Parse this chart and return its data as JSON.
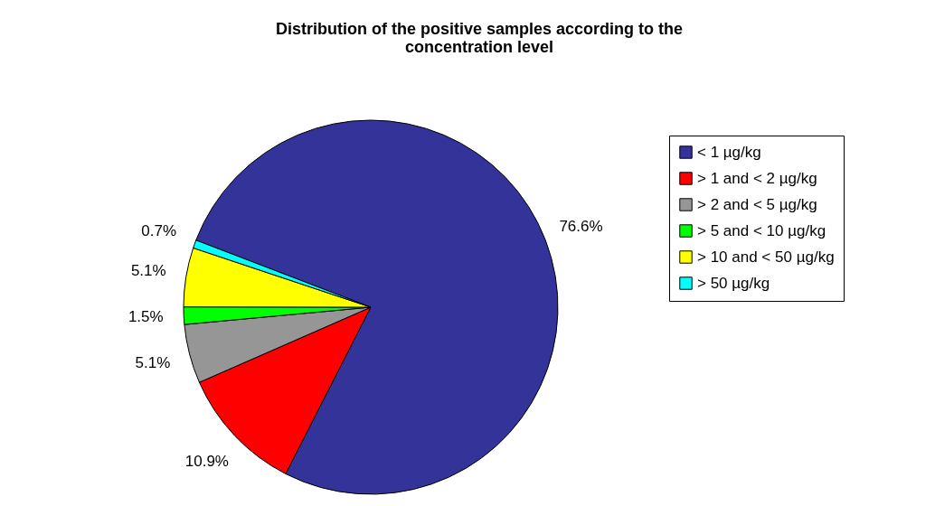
{
  "chart_data": {
    "type": "pie",
    "title": "Distribution of the positive samples according to the concentration level",
    "categories": [
      "< 1 µg/kg",
      "> 1 and < 2 µg/kg",
      "> 2 and < 5 µg/kg",
      "> 5 and < 10 µg/kg",
      "> 10 and < 50 µg/kg",
      "> 50 µg/kg"
    ],
    "values": [
      76.6,
      10.9,
      5.1,
      1.5,
      5.1,
      0.7
    ],
    "colors": [
      "#333399",
      "#ff0000",
      "#969696",
      "#00ff00",
      "#ffff00",
      "#00ffff"
    ],
    "value_labels": [
      "76.6%",
      "10.9%",
      "5.1%",
      "1.5%",
      "5.1%",
      "0.7%"
    ],
    "legend": "right"
  }
}
